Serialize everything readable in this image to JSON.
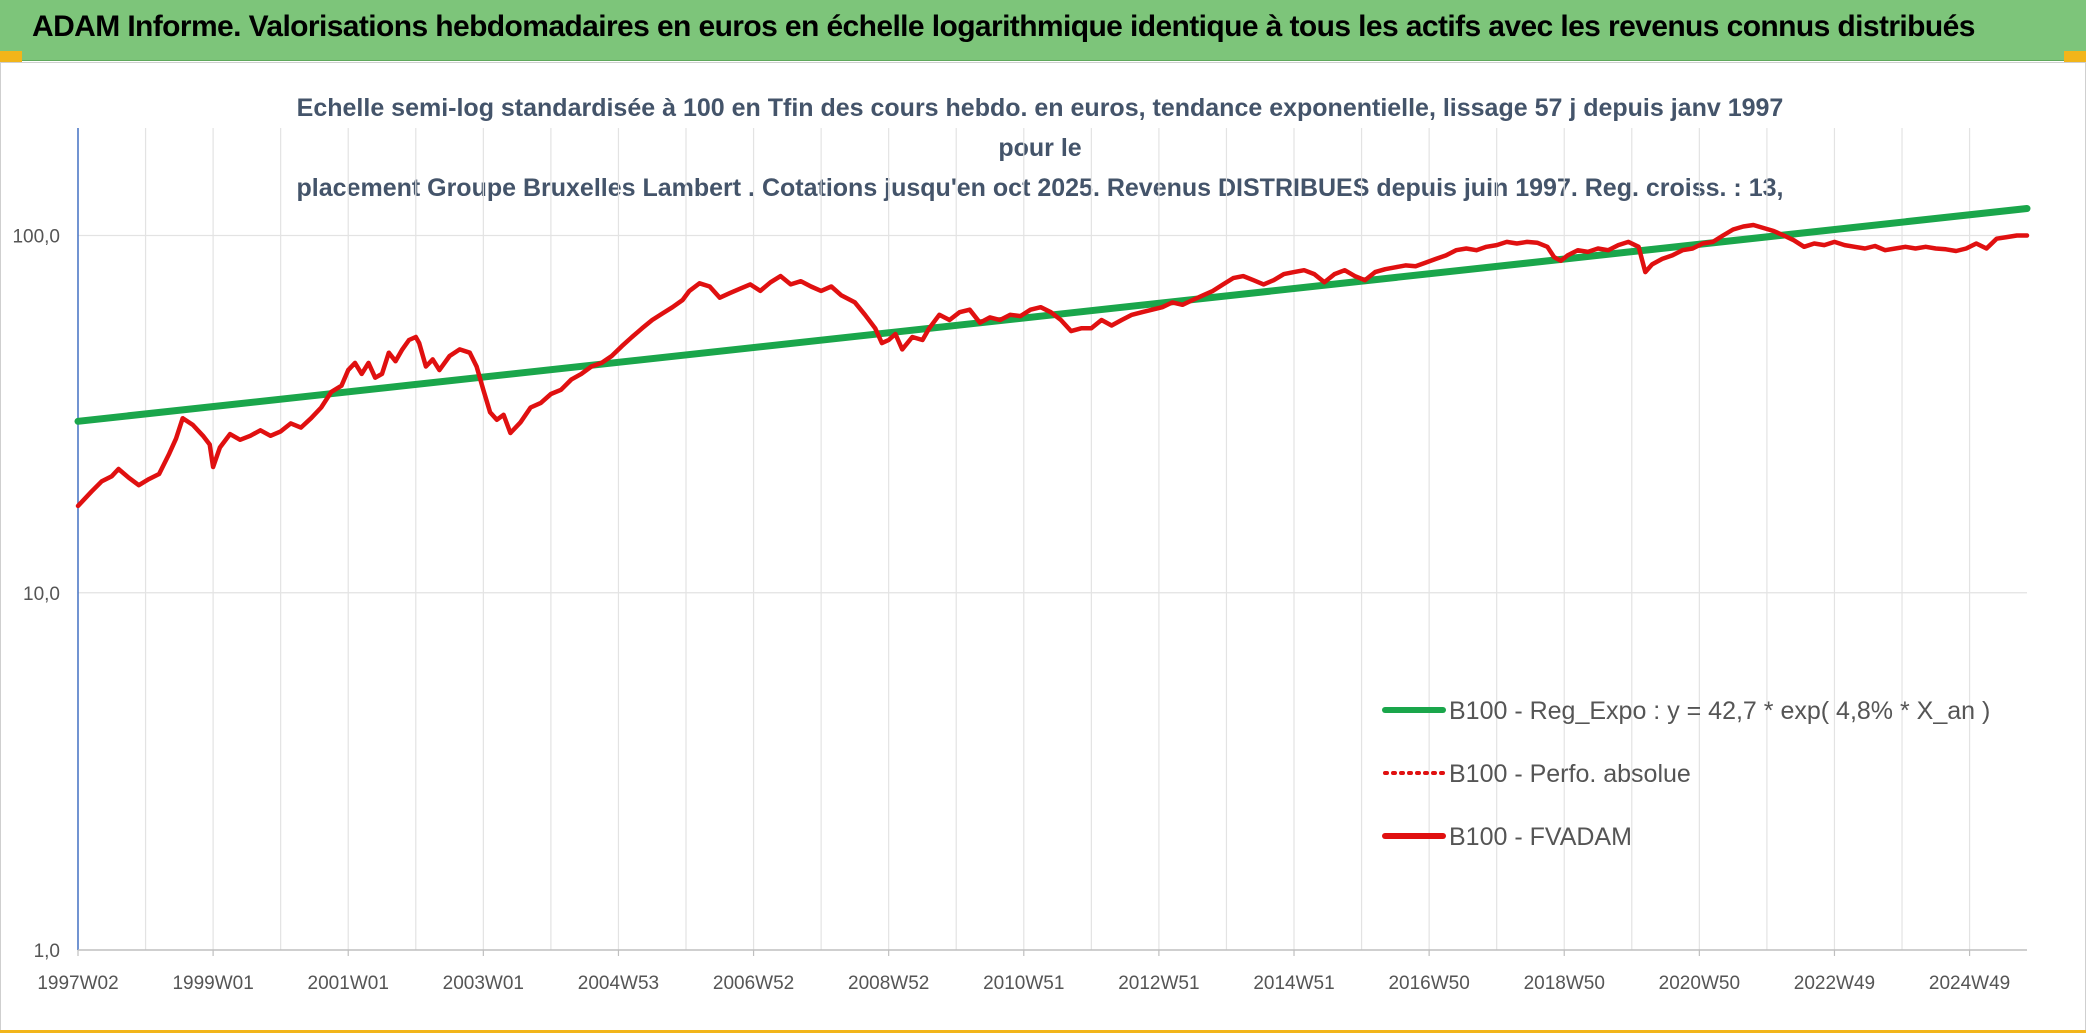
{
  "header": {
    "title": "ADAM Informe. Valorisations hebdomadaires en euros en échelle logarithmique identique à tous les actifs avec les revenus connus distribués"
  },
  "chart_data": {
    "type": "line",
    "title": "Echelle semi-log standardisée à 100 en Tfin des cours hebdo. en euros, tendance exponentielle, lissage 57 j depuis janv 1997 pour le placement Groupe Bruxelles Lambert . Cotations jusqu'en oct 2025. Revenus DISTRIBUES depuis juin 1997. Reg. croiss. : 13,",
    "title_lines": [
      "Echelle semi-log standardisée à 100 en Tfin des cours hebdo. en euros, tendance exponentielle, lissage 57 j depuis janv 1997 pour le",
      "placement Groupe Bruxelles Lambert . Cotations jusqu'en oct 2025. Revenus DISTRIBUES depuis juin 1997. Reg. croiss. : 13,"
    ],
    "y_scale": "log",
    "ylim": [
      1,
      200
    ],
    "y_ticks": [
      {
        "value": 1,
        "label": "1,0"
      },
      {
        "value": 10,
        "label": "10,0"
      },
      {
        "value": 100,
        "label": "100,0"
      }
    ],
    "x_range": [
      1997.0,
      2025.85
    ],
    "x_ticks": [
      {
        "label": "1997W02",
        "x": 1997.0
      },
      {
        "label": "1999W01",
        "x": 1999.0
      },
      {
        "label": "2001W01",
        "x": 2001.0
      },
      {
        "label": "2003W01",
        "x": 2003.0
      },
      {
        "label": "2004W53",
        "x": 2005.0
      },
      {
        "label": "2006W52",
        "x": 2007.0
      },
      {
        "label": "2008W52",
        "x": 2009.0
      },
      {
        "label": "2010W51",
        "x": 2011.0
      },
      {
        "label": "2012W51",
        "x": 2013.0
      },
      {
        "label": "2014W51",
        "x": 2015.0
      },
      {
        "label": "2016W50",
        "x": 2017.0
      },
      {
        "label": "2018W50",
        "x": 2019.0
      },
      {
        "label": "2020W50",
        "x": 2021.0
      },
      {
        "label": "2022W49",
        "x": 2023.0
      },
      {
        "label": "2024W49",
        "x": 2025.0
      }
    ],
    "grid": "vertical-and-horizontal",
    "legend_position": "bottom-right",
    "series": [
      {
        "name": "B100 - Reg_Expo : y = 42,7 * exp( 4,8% *  X_an )",
        "color": "#1aa64b",
        "style": "solid",
        "points": [
          [
            1997.0,
            30.2
          ],
          [
            2025.85,
            119.0
          ]
        ]
      },
      {
        "name": "B100 - Perfo. absolue",
        "color": "#e01010",
        "style": "dotted",
        "points": []
      },
      {
        "name": "B100 - FVADAM",
        "color": "#e01010",
        "style": "solid",
        "points": [
          [
            1997.0,
            17.5
          ],
          [
            1997.2,
            19.2
          ],
          [
            1997.35,
            20.5
          ],
          [
            1997.5,
            21.2
          ],
          [
            1997.6,
            22.2
          ],
          [
            1997.75,
            21.0
          ],
          [
            1997.9,
            20.0
          ],
          [
            1998.05,
            20.8
          ],
          [
            1998.2,
            21.5
          ],
          [
            1998.35,
            24.5
          ],
          [
            1998.45,
            27.0
          ],
          [
            1998.55,
            30.8
          ],
          [
            1998.7,
            29.5
          ],
          [
            1998.85,
            27.5
          ],
          [
            1998.95,
            26.0
          ],
          [
            1999.0,
            22.5
          ],
          [
            1999.1,
            25.5
          ],
          [
            1999.25,
            27.8
          ],
          [
            1999.4,
            26.8
          ],
          [
            1999.55,
            27.5
          ],
          [
            1999.7,
            28.5
          ],
          [
            1999.85,
            27.5
          ],
          [
            2000.0,
            28.3
          ],
          [
            2000.15,
            29.8
          ],
          [
            2000.3,
            29.0
          ],
          [
            2000.45,
            30.8
          ],
          [
            2000.6,
            33.0
          ],
          [
            2000.75,
            36.5
          ],
          [
            2000.9,
            38.0
          ],
          [
            2001.0,
            42.0
          ],
          [
            2001.1,
            44.0
          ],
          [
            2001.2,
            41.0
          ],
          [
            2001.3,
            44.0
          ],
          [
            2001.4,
            40.0
          ],
          [
            2001.5,
            41.0
          ],
          [
            2001.6,
            47.0
          ],
          [
            2001.7,
            44.5
          ],
          [
            2001.8,
            48.0
          ],
          [
            2001.9,
            51.0
          ],
          [
            2002.0,
            52.0
          ],
          [
            2002.05,
            50.0
          ],
          [
            2002.15,
            43.0
          ],
          [
            2002.25,
            45.0
          ],
          [
            2002.35,
            42.0
          ],
          [
            2002.5,
            46.0
          ],
          [
            2002.65,
            48.0
          ],
          [
            2002.8,
            47.0
          ],
          [
            2002.9,
            43.0
          ],
          [
            2003.0,
            37.0
          ],
          [
            2003.1,
            32.0
          ],
          [
            2003.2,
            30.5
          ],
          [
            2003.3,
            31.5
          ],
          [
            2003.4,
            28.0
          ],
          [
            2003.55,
            30.0
          ],
          [
            2003.7,
            33.0
          ],
          [
            2003.85,
            34.0
          ],
          [
            2004.0,
            36.0
          ],
          [
            2004.15,
            37.0
          ],
          [
            2004.3,
            39.5
          ],
          [
            2004.45,
            41.0
          ],
          [
            2004.6,
            43.0
          ],
          [
            2004.75,
            44.0
          ],
          [
            2004.9,
            46.0
          ],
          [
            2005.05,
            49.0
          ],
          [
            2005.2,
            52.0
          ],
          [
            2005.35,
            55.0
          ],
          [
            2005.5,
            58.0
          ],
          [
            2005.65,
            60.5
          ],
          [
            2005.8,
            63.0
          ],
          [
            2005.95,
            66.0
          ],
          [
            2006.05,
            70.0
          ],
          [
            2006.2,
            73.5
          ],
          [
            2006.35,
            72.0
          ],
          [
            2006.5,
            67.0
          ],
          [
            2006.65,
            69.0
          ],
          [
            2006.8,
            71.0
          ],
          [
            2006.95,
            73.0
          ],
          [
            2007.1,
            70.0
          ],
          [
            2007.25,
            74.0
          ],
          [
            2007.4,
            77.0
          ],
          [
            2007.55,
            73.0
          ],
          [
            2007.7,
            74.5
          ],
          [
            2007.85,
            72.0
          ],
          [
            2008.0,
            70.0
          ],
          [
            2008.15,
            72.0
          ],
          [
            2008.3,
            68.0
          ],
          [
            2008.5,
            65.0
          ],
          [
            2008.65,
            60.0
          ],
          [
            2008.8,
            55.0
          ],
          [
            2008.9,
            50.0
          ],
          [
            2009.0,
            51.0
          ],
          [
            2009.1,
            53.0
          ],
          [
            2009.2,
            48.0
          ],
          [
            2009.35,
            52.0
          ],
          [
            2009.5,
            51.0
          ],
          [
            2009.6,
            55.0
          ],
          [
            2009.75,
            60.0
          ],
          [
            2009.9,
            58.0
          ],
          [
            2010.05,
            61.0
          ],
          [
            2010.2,
            62.0
          ],
          [
            2010.35,
            57.0
          ],
          [
            2010.5,
            59.0
          ],
          [
            2010.65,
            58.0
          ],
          [
            2010.8,
            60.0
          ],
          [
            2010.95,
            59.5
          ],
          [
            2011.1,
            62.0
          ],
          [
            2011.25,
            63.0
          ],
          [
            2011.4,
            61.0
          ],
          [
            2011.55,
            58.0
          ],
          [
            2011.7,
            54.0
          ],
          [
            2011.85,
            55.0
          ],
          [
            2012.0,
            55.0
          ],
          [
            2012.15,
            58.0
          ],
          [
            2012.3,
            56.0
          ],
          [
            2012.45,
            58.0
          ],
          [
            2012.6,
            60.0
          ],
          [
            2012.75,
            61.0
          ],
          [
            2012.9,
            62.0
          ],
          [
            2013.05,
            63.0
          ],
          [
            2013.2,
            65.0
          ],
          [
            2013.35,
            64.0
          ],
          [
            2013.5,
            66.0
          ],
          [
            2013.65,
            68.0
          ],
          [
            2013.8,
            70.0
          ],
          [
            2013.95,
            73.0
          ],
          [
            2014.1,
            76.0
          ],
          [
            2014.25,
            77.0
          ],
          [
            2014.4,
            75.0
          ],
          [
            2014.55,
            73.0
          ],
          [
            2014.7,
            75.0
          ],
          [
            2014.85,
            78.0
          ],
          [
            2015.0,
            79.0
          ],
          [
            2015.15,
            80.0
          ],
          [
            2015.3,
            78.0
          ],
          [
            2015.45,
            74.0
          ],
          [
            2015.6,
            78.0
          ],
          [
            2015.75,
            80.0
          ],
          [
            2015.9,
            77.0
          ],
          [
            2016.05,
            75.0
          ],
          [
            2016.2,
            79.0
          ],
          [
            2016.35,
            80.5
          ],
          [
            2016.5,
            81.5
          ],
          [
            2016.65,
            82.5
          ],
          [
            2016.8,
            82.0
          ],
          [
            2016.95,
            84.0
          ],
          [
            2017.1,
            86.0
          ],
          [
            2017.25,
            88.0
          ],
          [
            2017.4,
            91.0
          ],
          [
            2017.55,
            92.0
          ],
          [
            2017.7,
            91.0
          ],
          [
            2017.85,
            93.0
          ],
          [
            2018.0,
            94.0
          ],
          [
            2018.15,
            96.0
          ],
          [
            2018.3,
            95.0
          ],
          [
            2018.45,
            96.0
          ],
          [
            2018.6,
            95.5
          ],
          [
            2018.75,
            93.0
          ],
          [
            2018.85,
            87.0
          ],
          [
            2018.95,
            85.0
          ],
          [
            2019.05,
            88.0
          ],
          [
            2019.2,
            91.0
          ],
          [
            2019.35,
            90.0
          ],
          [
            2019.5,
            92.0
          ],
          [
            2019.65,
            91.0
          ],
          [
            2019.8,
            94.0
          ],
          [
            2019.95,
            96.0
          ],
          [
            2020.1,
            93.0
          ],
          [
            2020.2,
            79.0
          ],
          [
            2020.3,
            83.0
          ],
          [
            2020.45,
            86.0
          ],
          [
            2020.6,
            88.0
          ],
          [
            2020.75,
            91.0
          ],
          [
            2020.9,
            92.0
          ],
          [
            2021.05,
            95.0
          ],
          [
            2021.2,
            96.0
          ],
          [
            2021.35,
            100.0
          ],
          [
            2021.5,
            104.0
          ],
          [
            2021.65,
            106.0
          ],
          [
            2021.8,
            107.0
          ],
          [
            2021.95,
            105.0
          ],
          [
            2022.1,
            103.0
          ],
          [
            2022.25,
            100.0
          ],
          [
            2022.4,
            97.0
          ],
          [
            2022.55,
            93.0
          ],
          [
            2022.7,
            95.0
          ],
          [
            2022.85,
            94.0
          ],
          [
            2023.0,
            96.0
          ],
          [
            2023.15,
            94.0
          ],
          [
            2023.3,
            93.0
          ],
          [
            2023.45,
            92.0
          ],
          [
            2023.6,
            93.5
          ],
          [
            2023.75,
            91.0
          ],
          [
            2023.9,
            92.0
          ],
          [
            2024.05,
            93.0
          ],
          [
            2024.2,
            92.0
          ],
          [
            2024.35,
            93.0
          ],
          [
            2024.5,
            92.0
          ],
          [
            2024.65,
            91.5
          ],
          [
            2024.8,
            90.5
          ],
          [
            2024.95,
            92.0
          ],
          [
            2025.1,
            95.0
          ],
          [
            2025.25,
            92.0
          ],
          [
            2025.4,
            98.0
          ],
          [
            2025.55,
            99.0
          ],
          [
            2025.7,
            100.0
          ],
          [
            2025.85,
            100.0
          ]
        ]
      }
    ]
  }
}
